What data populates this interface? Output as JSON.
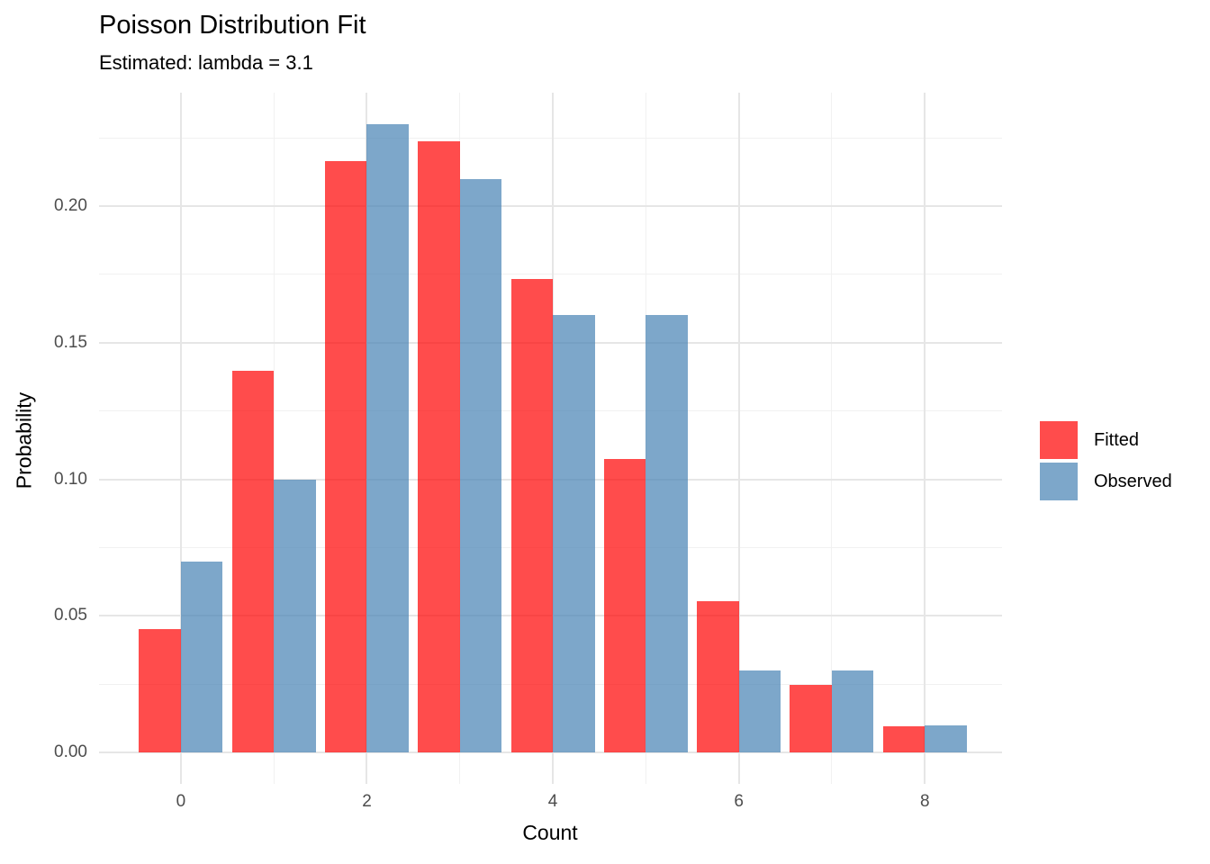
{
  "chart_data": {
    "type": "bar",
    "title": "Poisson Distribution Fit",
    "subtitle": "Estimated: lambda = 3.1",
    "xlabel": "Count",
    "ylabel": "Probability",
    "categories": [
      0,
      1,
      2,
      3,
      4,
      5,
      6,
      7,
      8
    ],
    "series": [
      {
        "name": "Fitted",
        "color": "#FF0000",
        "values": [
          0.045,
          0.1397,
          0.2165,
          0.2237,
          0.1734,
          0.1075,
          0.0555,
          0.0246,
          0.0095
        ]
      },
      {
        "name": "Observed",
        "color": "#4682B4",
        "values": [
          0.07,
          0.1,
          0.23,
          0.21,
          0.16,
          0.16,
          0.03,
          0.03,
          0.01
        ]
      }
    ],
    "bar_alpha": 0.7,
    "bar_width": 0.45,
    "x_ticks": [
      0,
      2,
      4,
      6,
      8
    ],
    "x_minor_ticks": [
      1,
      3,
      5,
      7
    ],
    "y_ticks": [
      0,
      0.05,
      0.1,
      0.15,
      0.2
    ],
    "y_tick_labels": [
      "0.00",
      "0.05",
      "0.10",
      "0.15",
      "0.20"
    ],
    "y_minor_ticks": [
      0.025,
      0.075,
      0.125,
      0.175,
      0.225
    ],
    "xlim": [
      -0.88,
      8.83
    ],
    "ylim": [
      -0.0115,
      0.2415
    ],
    "grid": true,
    "legend_position": "right"
  },
  "styles": {
    "background": "#FFFFFF",
    "grid_major_color": "#E6E6E6",
    "grid_minor_color": "#F1F1F1",
    "tick_label_color": "#4D4D4D",
    "text_color": "#000000",
    "fitted_fill_composite": "#FF4D4D",
    "observed_fill_composite": "#7EA8CB"
  }
}
